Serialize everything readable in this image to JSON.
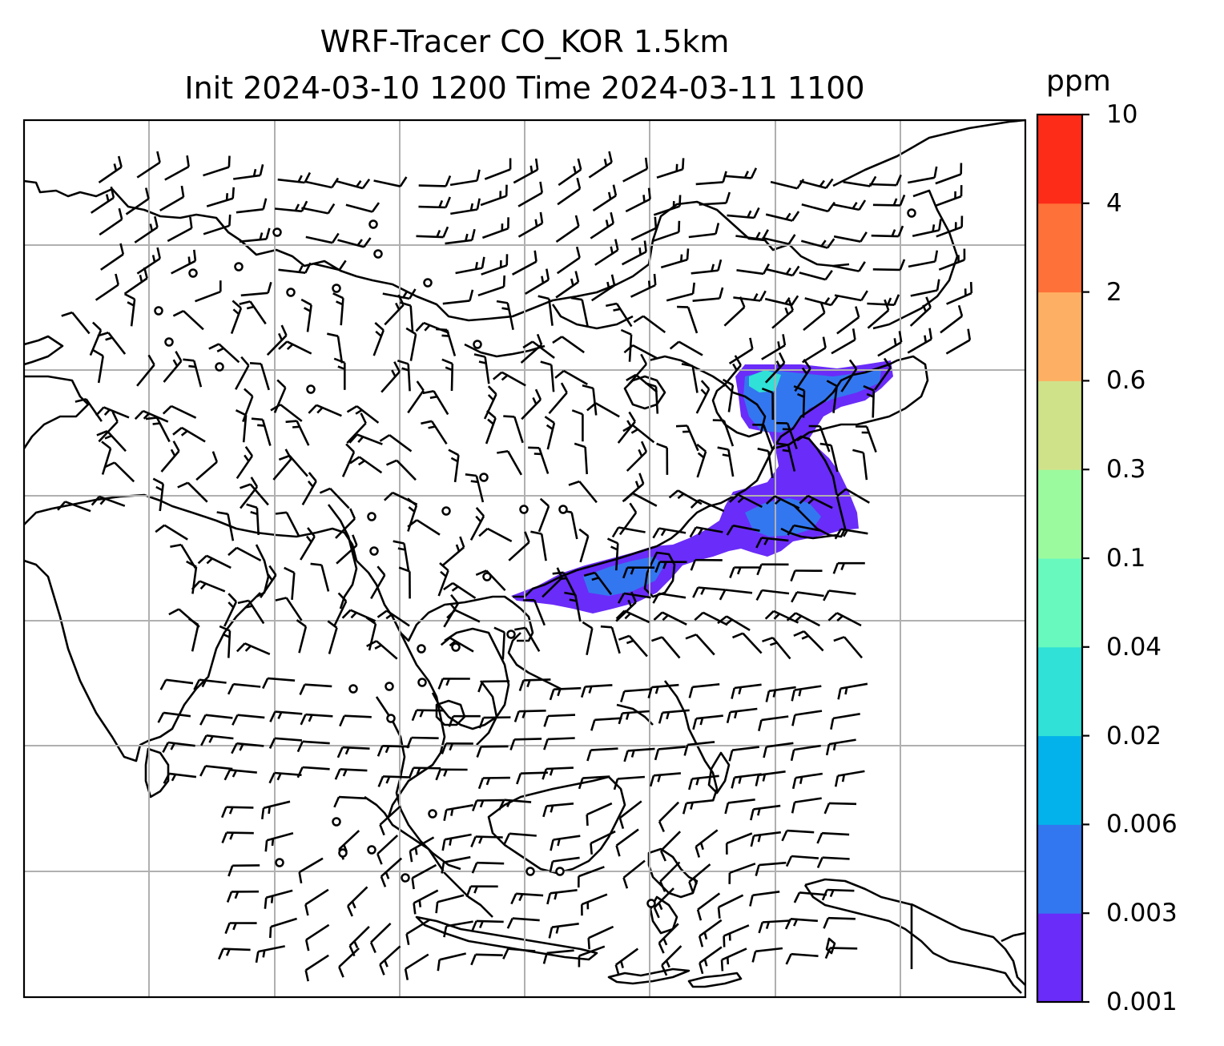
{
  "title": {
    "line1": "WRF-Tracer CO_KOR 1.5km",
    "line2": "Init 2024-03-10 1200 Time 2024-03-11 1100"
  },
  "colorbar": {
    "unit": "ppm",
    "ticks": [
      "0.001",
      "0.003",
      "0.006",
      "0.02",
      "0.04",
      "0.1",
      "0.3",
      "0.6",
      "2",
      "4",
      "10"
    ],
    "colors": [
      "#6a2cf8",
      "#3377f0",
      "#03b2ea",
      "#2fe1d6",
      "#68f9be",
      "#9cfa9e",
      "#cfe28a",
      "#fdb063",
      "#fe7139",
      "#fd2c19"
    ]
  },
  "map": {
    "gridlines": "on",
    "plume_colors": {
      "low": "#6a2cf8",
      "mid": "#3377f0",
      "high": "#2fe1d6"
    },
    "calm_marker": "circle",
    "wind_symbol": "barb"
  }
}
